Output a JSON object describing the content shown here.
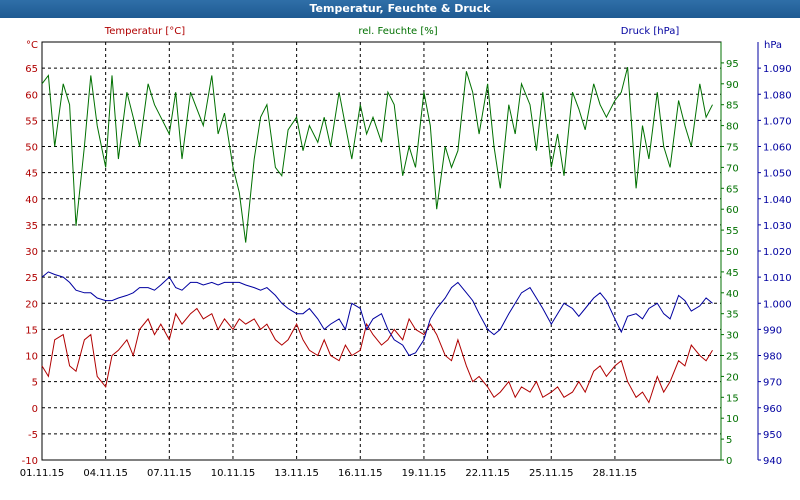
{
  "window": {
    "title": "Temperatur, Feuchte & Druck"
  },
  "chart_data": {
    "type": "line",
    "title": "Temperatur, Feuchte & Druck",
    "grid": true,
    "colors": {
      "temperature": "#b00000",
      "humidity": "#007000",
      "pressure": "#0000a0",
      "frame": "#7f9db9",
      "grid": "#000000"
    },
    "axes": {
      "temperature": {
        "title": "Temperatur [°C]",
        "unit": "°C",
        "range": [
          -10,
          70
        ],
        "ticks": [
          "-10",
          "-5",
          "0",
          "5",
          "10",
          "15",
          "20",
          "25",
          "30",
          "35",
          "40",
          "45",
          "50",
          "55",
          "60",
          "65"
        ]
      },
      "humidity": {
        "title": "rel. Feuchte [%]",
        "unit": "%",
        "range": [
          0,
          100
        ],
        "ticks": [
          "0",
          "5",
          "10",
          "15",
          "20",
          "25",
          "30",
          "35",
          "40",
          "45",
          "50",
          "55",
          "60",
          "65",
          "70",
          "75",
          "80",
          "85",
          "90",
          "95"
        ]
      },
      "pressure": {
        "title": "Druck [hPa]",
        "unit": "hPa",
        "range": [
          940,
          1100
        ],
        "ticks": [
          "940",
          "950",
          "960",
          "970",
          "980",
          "990",
          "1.000",
          "1.010",
          "1.020",
          "1.030",
          "1.040",
          "1.050",
          "1.060",
          "1.070",
          "1.080",
          "1.090"
        ]
      },
      "x": {
        "range": [
          0,
          32
        ],
        "tick_labels": [
          "01.11.15",
          "04.11.15",
          "07.11.15",
          "10.11.15",
          "13.11.15",
          "16.11.15",
          "19.11.15",
          "22.11.15",
          "25.11.15",
          "28.11.15"
        ],
        "tick_positions": [
          0,
          3,
          6,
          9,
          12,
          15,
          18,
          21,
          24,
          27
        ]
      }
    },
    "series": [
      {
        "name": "Temperatur [°C]",
        "axis": "temperature",
        "color": "#b00000",
        "x": [
          0,
          0.3,
          0.6,
          1,
          1.3,
          1.6,
          2,
          2.3,
          2.6,
          3,
          3.3,
          3.6,
          4,
          4.3,
          4.6,
          5,
          5.3,
          5.6,
          6,
          6.3,
          6.6,
          7,
          7.3,
          7.6,
          8,
          8.3,
          8.6,
          9,
          9.3,
          9.6,
          10,
          10.3,
          10.6,
          11,
          11.3,
          11.6,
          12,
          12.3,
          12.6,
          13,
          13.3,
          13.6,
          14,
          14.3,
          14.6,
          15,
          15.3,
          15.6,
          16,
          16.3,
          16.6,
          17,
          17.3,
          17.6,
          18,
          18.3,
          18.6,
          19,
          19.3,
          19.6,
          20,
          20.3,
          20.6,
          21,
          21.3,
          21.6,
          22,
          22.3,
          22.6,
          23,
          23.3,
          23.6,
          24,
          24.3,
          24.6,
          25,
          25.3,
          25.6,
          26,
          26.3,
          26.6,
          27,
          27.3,
          27.6,
          28,
          28.3,
          28.6,
          29,
          29.3,
          29.6,
          30,
          30.3,
          30.6,
          31,
          31.3,
          31.6
        ],
        "values": [
          8,
          6,
          13,
          14,
          8,
          7,
          13,
          14,
          6,
          4,
          10,
          11,
          13,
          10,
          15,
          17,
          14,
          16,
          13,
          18,
          16,
          18,
          19,
          17,
          18,
          15,
          17,
          15,
          17,
          16,
          17,
          15,
          16,
          13,
          12,
          13,
          16,
          13,
          11,
          10,
          13,
          10,
          9,
          12,
          10,
          11,
          16,
          14,
          12,
          13,
          15,
          13,
          17,
          15,
          14,
          16,
          14,
          10,
          9,
          13,
          8,
          5,
          6,
          4,
          2,
          3,
          5,
          2,
          4,
          3,
          5,
          2,
          3,
          4,
          2,
          3,
          5,
          3,
          7,
          8,
          6,
          8,
          9,
          5,
          2,
          3,
          1,
          6,
          3,
          5,
          9,
          8,
          12,
          10,
          9,
          11
        ]
      },
      {
        "name": "rel. Feuchte [%]",
        "axis": "humidity",
        "color": "#007000",
        "x": [
          0,
          0.3,
          0.6,
          1,
          1.3,
          1.6,
          2,
          2.3,
          2.6,
          3,
          3.3,
          3.6,
          4,
          4.3,
          4.6,
          5,
          5.3,
          5.6,
          6,
          6.3,
          6.6,
          7,
          7.3,
          7.6,
          8,
          8.3,
          8.6,
          9,
          9.3,
          9.6,
          10,
          10.3,
          10.6,
          11,
          11.3,
          11.6,
          12,
          12.3,
          12.6,
          13,
          13.3,
          13.6,
          14,
          14.3,
          14.6,
          15,
          15.3,
          15.6,
          16,
          16.3,
          16.6,
          17,
          17.3,
          17.6,
          18,
          18.3,
          18.6,
          19,
          19.3,
          19.6,
          20,
          20.3,
          20.6,
          21,
          21.3,
          21.6,
          22,
          22.3,
          22.6,
          23,
          23.3,
          23.6,
          24,
          24.3,
          24.6,
          25,
          25.3,
          25.6,
          26,
          26.3,
          26.6,
          27,
          27.3,
          27.6,
          28,
          28.3,
          28.6,
          29,
          29.3,
          29.6,
          30,
          30.3,
          30.6,
          31,
          31.3,
          31.6
        ],
        "values": [
          90,
          92,
          75,
          90,
          85,
          56,
          75,
          92,
          80,
          70,
          92,
          72,
          88,
          82,
          75,
          90,
          85,
          82,
          78,
          88,
          72,
          88,
          84,
          80,
          92,
          78,
          83,
          70,
          64,
          52,
          72,
          82,
          85,
          70,
          68,
          79,
          82,
          74,
          80,
          76,
          82,
          75,
          88,
          80,
          72,
          85,
          78,
          82,
          76,
          88,
          85,
          68,
          75,
          70,
          88,
          80,
          60,
          75,
          70,
          74,
          93,
          88,
          78,
          90,
          75,
          65,
          85,
          78,
          90,
          85,
          74,
          88,
          70,
          78,
          68,
          88,
          84,
          79,
          90,
          85,
          82,
          86,
          88,
          94,
          65,
          80,
          72,
          88,
          75,
          70,
          86,
          80,
          75,
          90,
          82,
          85
        ]
      },
      {
        "name": "Druck [hPa]",
        "axis": "pressure",
        "color": "#0000a0",
        "x": [
          0,
          0.3,
          0.6,
          1,
          1.3,
          1.6,
          2,
          2.3,
          2.6,
          3,
          3.3,
          3.6,
          4,
          4.3,
          4.6,
          5,
          5.3,
          5.6,
          6,
          6.3,
          6.6,
          7,
          7.3,
          7.6,
          8,
          8.3,
          8.6,
          9,
          9.3,
          9.6,
          10,
          10.3,
          10.6,
          11,
          11.3,
          11.6,
          12,
          12.3,
          12.6,
          13,
          13.3,
          13.6,
          14,
          14.3,
          14.6,
          15,
          15.3,
          15.6,
          16,
          16.3,
          16.6,
          17,
          17.3,
          17.6,
          18,
          18.3,
          18.6,
          19,
          19.3,
          19.6,
          20,
          20.3,
          20.6,
          21,
          21.3,
          21.6,
          22,
          22.3,
          22.6,
          23,
          23.3,
          23.6,
          24,
          24.3,
          24.6,
          25,
          25.3,
          25.6,
          26,
          26.3,
          26.6,
          27,
          27.3,
          27.6,
          28,
          28.3,
          28.6,
          29,
          29.3,
          29.6,
          30,
          30.3,
          30.6,
          31,
          31.3,
          31.6
        ],
        "values": [
          1010,
          1012,
          1011,
          1010,
          1008,
          1005,
          1004,
          1004,
          1002,
          1001,
          1001,
          1002,
          1003,
          1004,
          1006,
          1006,
          1005,
          1007,
          1010,
          1006,
          1005,
          1008,
          1008,
          1007,
          1008,
          1007,
          1008,
          1008,
          1008,
          1007,
          1006,
          1005,
          1006,
          1003,
          1000,
          998,
          996,
          996,
          998,
          994,
          990,
          992,
          994,
          990,
          1000,
          998,
          990,
          994,
          996,
          990,
          986,
          984,
          980,
          981,
          986,
          994,
          998,
          1002,
          1006,
          1008,
          1004,
          1001,
          996,
          990,
          988,
          990,
          996,
          1000,
          1004,
          1006,
          1002,
          998,
          992,
          996,
          1000,
          998,
          995,
          998,
          1002,
          1004,
          1001,
          994,
          989,
          995,
          996,
          994,
          998,
          1000,
          996,
          994,
          1003,
          1001,
          997,
          999,
          1002,
          1000
        ]
      }
    ]
  }
}
